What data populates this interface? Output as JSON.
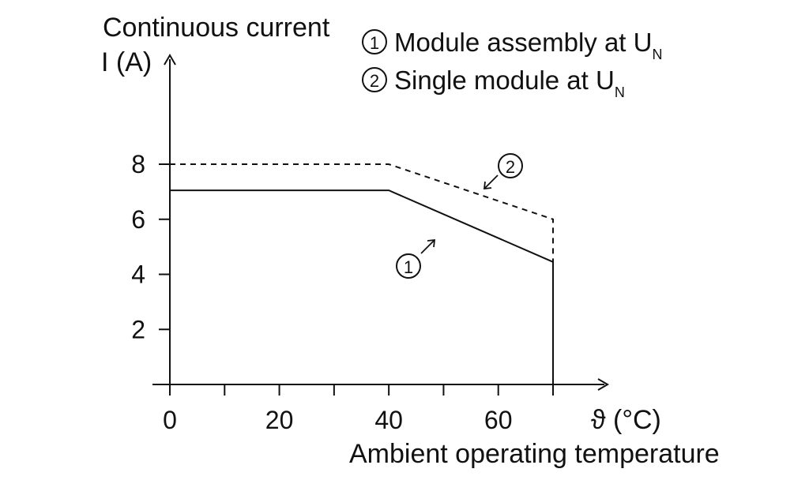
{
  "chart_data": {
    "type": "line",
    "ylabel_line1": "Continuous current",
    "ylabel_line2": "I (A)",
    "xlabel": "Ambient operating temperature",
    "xunit": "ϑ (°C)",
    "xticks": [
      0,
      10,
      20,
      30,
      40,
      50,
      60,
      70
    ],
    "xtick_labels": [
      {
        "value": 0,
        "text": "0"
      },
      {
        "value": 20,
        "text": "20"
      },
      {
        "value": 40,
        "text": "40"
      },
      {
        "value": 60,
        "text": "60"
      }
    ],
    "yticks": [
      {
        "value": 2,
        "text": "2"
      },
      {
        "value": 4,
        "text": "4"
      },
      {
        "value": 6,
        "text": "6"
      },
      {
        "value": 8,
        "text": "8"
      }
    ],
    "xlim": [
      0,
      70
    ],
    "ylim": [
      0,
      8
    ],
    "series": [
      {
        "marker": "1",
        "name": "Module assembly at U",
        "subscript": "N",
        "style": "solid",
        "points": [
          [
            0,
            7.05
          ],
          [
            40,
            7.05
          ],
          [
            70,
            4.45
          ]
        ]
      },
      {
        "marker": "2",
        "name": "Single module at U",
        "subscript": "N",
        "style": "dashed",
        "points": [
          [
            0,
            8
          ],
          [
            40,
            8
          ],
          [
            70,
            6
          ]
        ]
      }
    ],
    "legend_position": "top-right",
    "grid": false
  }
}
